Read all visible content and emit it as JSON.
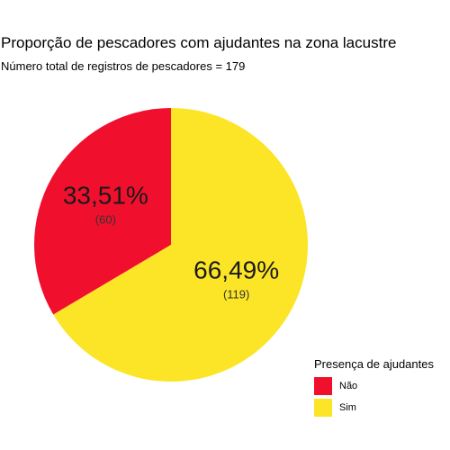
{
  "chart_data": {
    "type": "pie",
    "title": "Proporção de pescadores com ajudantes na zona lacustre",
    "subtitle": "Número total de registros de pescadores = 179",
    "legend_title": "Presença de ajudantes",
    "legend_position": "bottom-right",
    "slices": [
      {
        "label": "Não",
        "count": 60,
        "percent": 33.51,
        "percent_label": "33,51%",
        "count_label": "(60)",
        "color": "#F0102E"
      },
      {
        "label": "Sim",
        "count": 119,
        "percent": 66.49,
        "percent_label": "66,49%",
        "count_label": "(119)",
        "color": "#FCE526"
      }
    ]
  }
}
